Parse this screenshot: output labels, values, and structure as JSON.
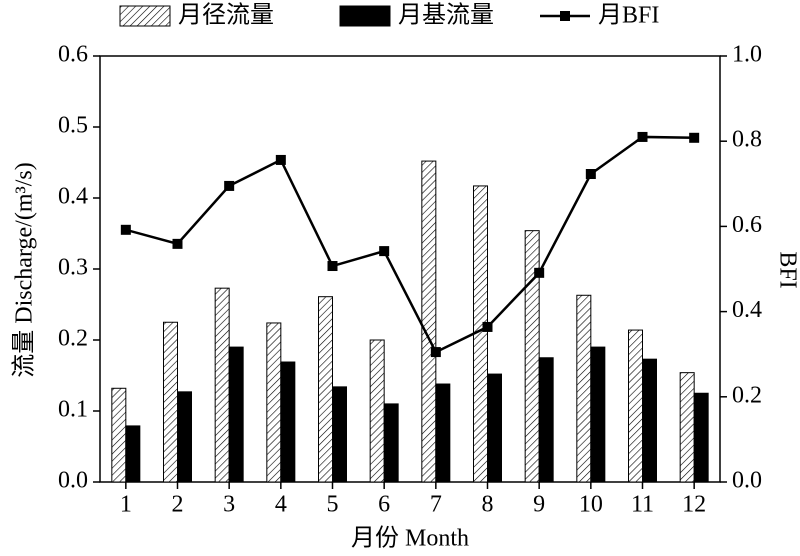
{
  "chart_data": {
    "type": "bar-line",
    "categories": [
      "1",
      "2",
      "3",
      "4",
      "5",
      "6",
      "7",
      "8",
      "9",
      "10",
      "11",
      "12"
    ],
    "xlabel": "月份 Month",
    "ylabel": "流量 Discharge/(m³/s)",
    "y2label": "BFI",
    "series": [
      {
        "name": "月径流量",
        "type": "bar",
        "color": "#000000",
        "hatch": true,
        "values": [
          0.132,
          0.225,
          0.273,
          0.224,
          0.261,
          0.2,
          0.452,
          0.417,
          0.354,
          0.263,
          0.214,
          0.154
        ]
      },
      {
        "name": "月基流量",
        "type": "bar",
        "color": "#000000",
        "hatch": false,
        "values": [
          0.079,
          0.127,
          0.19,
          0.169,
          0.134,
          0.11,
          0.138,
          0.152,
          0.175,
          0.19,
          0.173,
          0.125
        ]
      },
      {
        "name": "月BFI",
        "type": "line",
        "axis": "y2",
        "color": "#000000",
        "values": [
          0.592,
          0.559,
          0.695,
          0.756,
          0.507,
          0.542,
          0.305,
          0.364,
          0.491,
          0.723,
          0.81,
          0.808
        ]
      }
    ],
    "ylim": [
      0,
      0.6
    ],
    "yticks": [
      {
        "value": 0,
        "label": "0.0"
      },
      0.1,
      0.2,
      0.3,
      0.4,
      0.5,
      0.6
    ],
    "y2lim": [
      0,
      1
    ],
    "y2ticks": [
      {
        "value": 0,
        "label": "0.0"
      },
      0.2,
      0.4,
      0.6,
      0.8,
      {
        "value": 1,
        "label": "1.0"
      }
    ],
    "grid": false,
    "legend": "top"
  }
}
